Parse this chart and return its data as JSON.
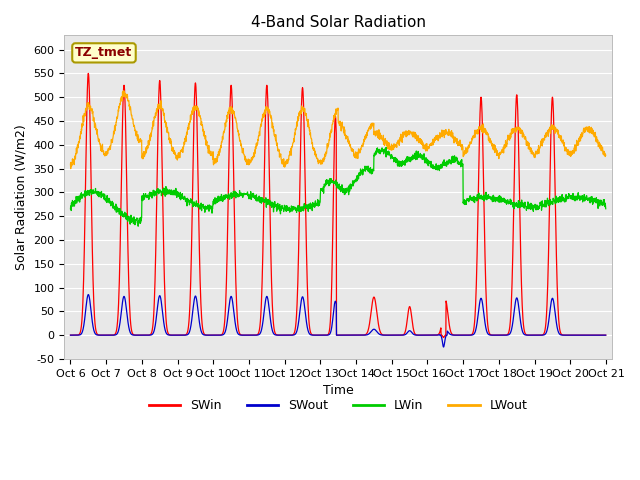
{
  "title": "4-Band Solar Radiation",
  "xlabel": "Time",
  "ylabel": "Solar Radiation (W/m2)",
  "ylim": [
    -50,
    630
  ],
  "xlim_days": [
    5.83,
    21.17
  ],
  "tick_labels": [
    "Oct 6",
    "Oct 7",
    "Oct 8",
    "Oct 9",
    "Oct 10",
    "Oct 11",
    "Oct 12",
    "Oct 13",
    "Oct 14",
    "Oct 15",
    "Oct 16",
    "Oct 17",
    "Oct 18",
    "Oct 19",
    "Oct 20",
    "Oct 21"
  ],
  "tick_positions": [
    6,
    7,
    8,
    9,
    10,
    11,
    12,
    13,
    14,
    15,
    16,
    17,
    18,
    19,
    20,
    21
  ],
  "legend_entries": [
    "SWin",
    "SWout",
    "LWin",
    "LWout"
  ],
  "line_colors": [
    "#ff0000",
    "#0000cc",
    "#00cc00",
    "#ffaa00"
  ],
  "annotation_text": "TZ_tmet",
  "title_fontsize": 11,
  "axis_fontsize": 8,
  "yticks": [
    -50,
    0,
    50,
    100,
    150,
    200,
    250,
    300,
    350,
    400,
    450,
    500,
    550,
    600
  ],
  "fig_bg": "#ffffff",
  "plot_bg": "#e8e8e8"
}
